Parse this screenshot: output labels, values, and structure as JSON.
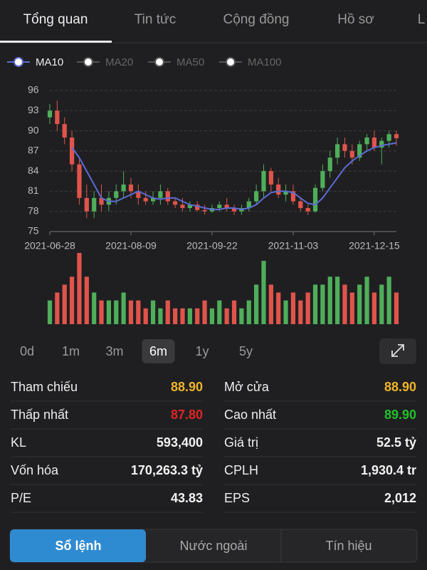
{
  "tabs": [
    "Tổng quan",
    "Tin tức",
    "Cộng đồng",
    "Hồ sơ",
    "L"
  ],
  "legend": [
    "MA10",
    "MA20",
    "MA50",
    "MA100"
  ],
  "chart_data": {
    "type": "candlestick",
    "categories": [
      "2021-06-28",
      null,
      null,
      null,
      null,
      null,
      null,
      null,
      null,
      null,
      null,
      "2021-08-09",
      null,
      null,
      null,
      null,
      null,
      null,
      null,
      null,
      null,
      null,
      "2021-09-22",
      null,
      null,
      null,
      null,
      null,
      null,
      null,
      null,
      null,
      null,
      "2021-11-03",
      null,
      null,
      null,
      null,
      null,
      null,
      null,
      null,
      null,
      null,
      "2021-12-15",
      null,
      null,
      null
    ],
    "open": [
      92,
      93,
      91,
      89,
      85,
      80,
      78,
      80,
      79,
      80,
      81,
      82,
      81,
      80,
      79.5,
      80,
      81,
      79.5,
      79,
      78.5,
      79,
      78.2,
      78,
      78.5,
      79,
      78.5,
      78,
      78.5,
      79.5,
      81,
      84,
      82,
      80.5,
      81,
      79.5,
      78.5,
      78,
      81.5,
      84,
      86,
      88,
      87,
      86,
      88,
      89,
      87.5,
      88.5,
      89.5
    ],
    "high": [
      94,
      94.5,
      92,
      90,
      86,
      82,
      81,
      82,
      81,
      82,
      84,
      83,
      82,
      81,
      81,
      82,
      81.5,
      80,
      80,
      79.5,
      79.5,
      79,
      79,
      79.5,
      80,
      79,
      79,
      80,
      82,
      85,
      84.5,
      83,
      82,
      82,
      80,
      79,
      82,
      85,
      87,
      89,
      89,
      88,
      88.5,
      89.5,
      90,
      89,
      90,
      90
    ],
    "low": [
      91,
      90,
      88,
      84,
      79,
      77,
      77,
      78,
      78,
      79,
      80,
      80,
      79,
      79,
      79,
      79,
      79,
      78.5,
      78,
      78,
      78,
      77.5,
      77.8,
      78,
      78,
      77.5,
      77.5,
      78,
      79,
      80,
      81,
      80,
      79.5,
      79,
      78,
      77.5,
      77.8,
      81,
      83,
      85,
      86,
      85,
      85.5,
      87,
      87,
      85,
      87.5,
      87.8
    ],
    "close": [
      93,
      91,
      89,
      85,
      80,
      78,
      80,
      79,
      80,
      81,
      82,
      81,
      80,
      79.5,
      80,
      81,
      79.5,
      79,
      78.5,
      79,
      78.2,
      78,
      78.5,
      79,
      78.5,
      78,
      78.5,
      79.5,
      81,
      84,
      82,
      80.5,
      81,
      79.5,
      78.5,
      78,
      81.5,
      84,
      86,
      88,
      87,
      86,
      88,
      89,
      87.5,
      88.5,
      89.5,
      88.9
    ],
    "volume": [
      3,
      4,
      5,
      6,
      9,
      6,
      4,
      3,
      3,
      3,
      4,
      3,
      3,
      2,
      3,
      2,
      3,
      2,
      2,
      2,
      2,
      3,
      2,
      3,
      2,
      3,
      2,
      3,
      5,
      8,
      5,
      4,
      3,
      4,
      3,
      4,
      5,
      5,
      6,
      6,
      5,
      4,
      5,
      6,
      4,
      5,
      6,
      4
    ],
    "ma10": [
      null,
      null,
      null,
      87.5,
      86,
      84,
      82,
      80,
      79.5,
      79.5,
      80,
      80.5,
      81,
      80.5,
      80,
      79.8,
      80,
      80,
      79.5,
      79,
      78.8,
      78.5,
      78.3,
      78.3,
      78.5,
      78.5,
      78.3,
      78.5,
      79,
      80,
      80.8,
      81,
      81,
      80.8,
      80,
      79.2,
      79,
      80,
      81.5,
      83,
      84.5,
      85.5,
      86.3,
      87,
      87.5,
      87.8,
      88,
      88.2
    ],
    "ylim": [
      75,
      96
    ],
    "yticks": [
      75,
      78,
      81,
      84,
      87,
      90,
      93,
      96
    ],
    "grid": true,
    "up_color": "#4fae5a",
    "down_color": "#e0544b",
    "ma_color": "#5c6bd6"
  },
  "periods": [
    "0d",
    "1m",
    "3m",
    "6m",
    "1y",
    "5y"
  ],
  "stats": [
    [
      {
        "label": "Tham chiếu",
        "value": "88.90",
        "color": "#f0b429"
      },
      {
        "label": "Mở cửa",
        "value": "88.90",
        "color": "#f0b429"
      }
    ],
    [
      {
        "label": "Thấp nhất",
        "value": "87.80",
        "color": "#e02424"
      },
      {
        "label": "Cao nhất",
        "value": "89.90",
        "color": "#22c02c"
      }
    ],
    [
      {
        "label": "KL",
        "value": "593,400"
      },
      {
        "label": "Giá trị",
        "value": "52.5 tỷ"
      }
    ],
    [
      {
        "label": "Vốn hóa",
        "value": "170,263.3 tỷ"
      },
      {
        "label": "CPLH",
        "value": "1,930.4 tr"
      }
    ],
    [
      {
        "label": "P/E",
        "value": "43.83"
      },
      {
        "label": "EPS",
        "value": "2,012"
      }
    ]
  ],
  "bottom_tabs": [
    "Sổ lệnh",
    "Nước ngoài",
    "Tín hiệu"
  ]
}
